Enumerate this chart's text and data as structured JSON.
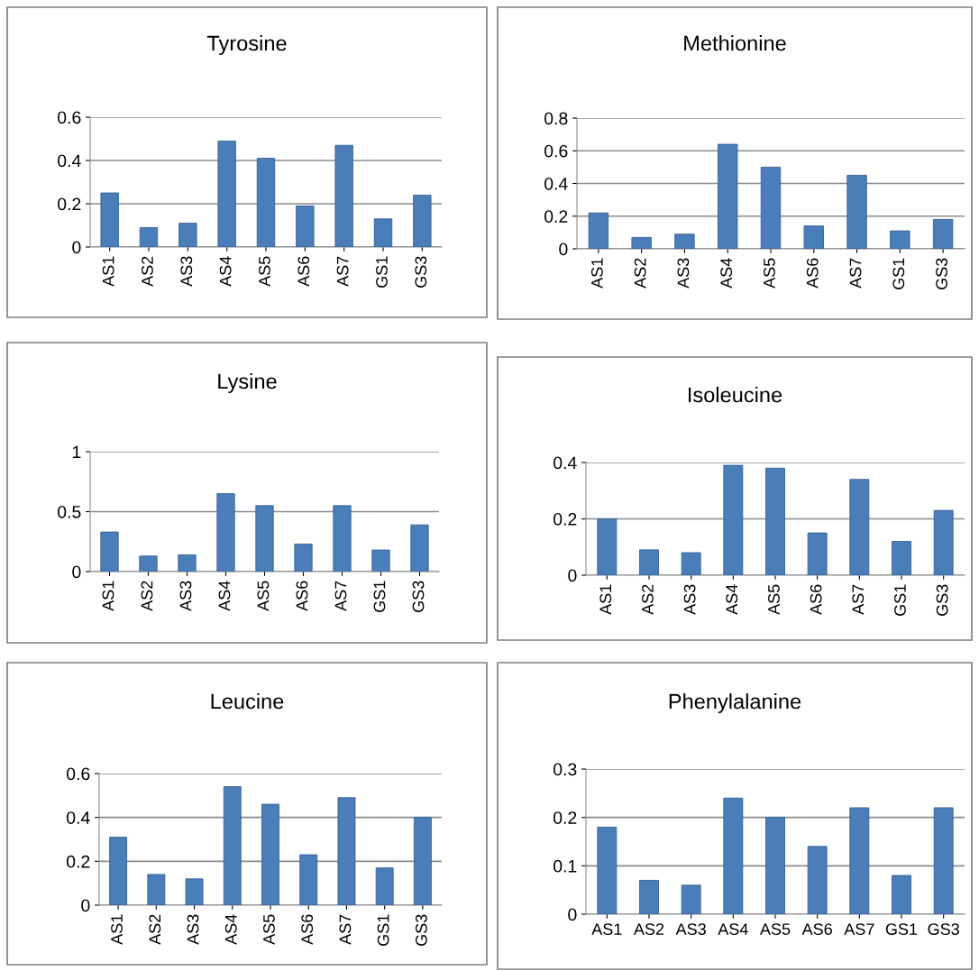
{
  "chart_data": [
    {
      "type": "bar",
      "title": "Tyrosine",
      "categories": [
        "AS1",
        "AS2",
        "AS3",
        "AS4",
        "AS5",
        "AS6",
        "AS7",
        "GS1",
        "GS3"
      ],
      "values": [
        0.25,
        0.09,
        0.11,
        0.49,
        0.41,
        0.19,
        0.47,
        0.13,
        0.24
      ],
      "color": "#4a7ebb",
      "ylim": [
        0,
        0.6
      ],
      "yticks": [
        0,
        0.2,
        0.4,
        0.6
      ],
      "grid": "y",
      "legend": false
    },
    {
      "type": "bar",
      "title": "Methionine",
      "categories": [
        "AS1",
        "AS2",
        "AS3",
        "AS4",
        "AS5",
        "AS6",
        "AS7",
        "GS1",
        "GS3"
      ],
      "values": [
        0.22,
        0.07,
        0.09,
        0.64,
        0.5,
        0.14,
        0.45,
        0.11,
        0.18
      ],
      "color": "#4a7ebb",
      "ylim": [
        0,
        0.8
      ],
      "yticks": [
        0,
        0.2,
        0.4,
        0.6,
        0.8
      ],
      "grid": "y",
      "legend": false
    },
    {
      "type": "bar",
      "title": "Lysine",
      "categories": [
        "AS1",
        "AS2",
        "AS3",
        "AS4",
        "AS5",
        "AS6",
        "AS7",
        "GS1",
        "GS3"
      ],
      "values": [
        0.33,
        0.13,
        0.14,
        0.65,
        0.55,
        0.23,
        0.55,
        0.18,
        0.39
      ],
      "color": "#4a7ebb",
      "ylim": [
        0,
        1
      ],
      "yticks": [
        0,
        0.5,
        1
      ],
      "grid": "y",
      "legend": false
    },
    {
      "type": "bar",
      "title": "Isoleucine",
      "categories": [
        "AS1",
        "AS2",
        "AS3",
        "AS4",
        "AS5",
        "AS6",
        "AS7",
        "GS1",
        "GS3"
      ],
      "values": [
        0.2,
        0.09,
        0.08,
        0.39,
        0.38,
        0.15,
        0.34,
        0.12,
        0.23
      ],
      "color": "#4a7ebb",
      "ylim": [
        0,
        0.4
      ],
      "yticks": [
        0,
        0.2,
        0.4
      ],
      "grid": "y",
      "legend": false
    },
    {
      "type": "bar",
      "title": "Leucine",
      "categories": [
        "AS1",
        "AS2",
        "AS3",
        "AS4",
        "AS5",
        "AS6",
        "AS7",
        "GS1",
        "GS3"
      ],
      "values": [
        0.31,
        0.14,
        0.12,
        0.54,
        0.46,
        0.23,
        0.49,
        0.17,
        0.4
      ],
      "color": "#4a7ebb",
      "ylim": [
        0,
        0.6
      ],
      "yticks": [
        0,
        0.2,
        0.4,
        0.6
      ],
      "grid": "y",
      "legend": false
    },
    {
      "type": "bar",
      "title": "Phenylalanine",
      "categories": [
        "AS1",
        "AS2",
        "AS3",
        "AS4",
        "AS5",
        "AS6",
        "AS7",
        "GS1",
        "GS3"
      ],
      "values": [
        0.18,
        0.07,
        0.06,
        0.24,
        0.2,
        0.14,
        0.22,
        0.08,
        0.22
      ],
      "color": "#4a7ebb",
      "ylim": [
        0,
        0.3
      ],
      "yticks": [
        0,
        0.1,
        0.2,
        0.3
      ],
      "grid": "y",
      "legend": false
    }
  ]
}
